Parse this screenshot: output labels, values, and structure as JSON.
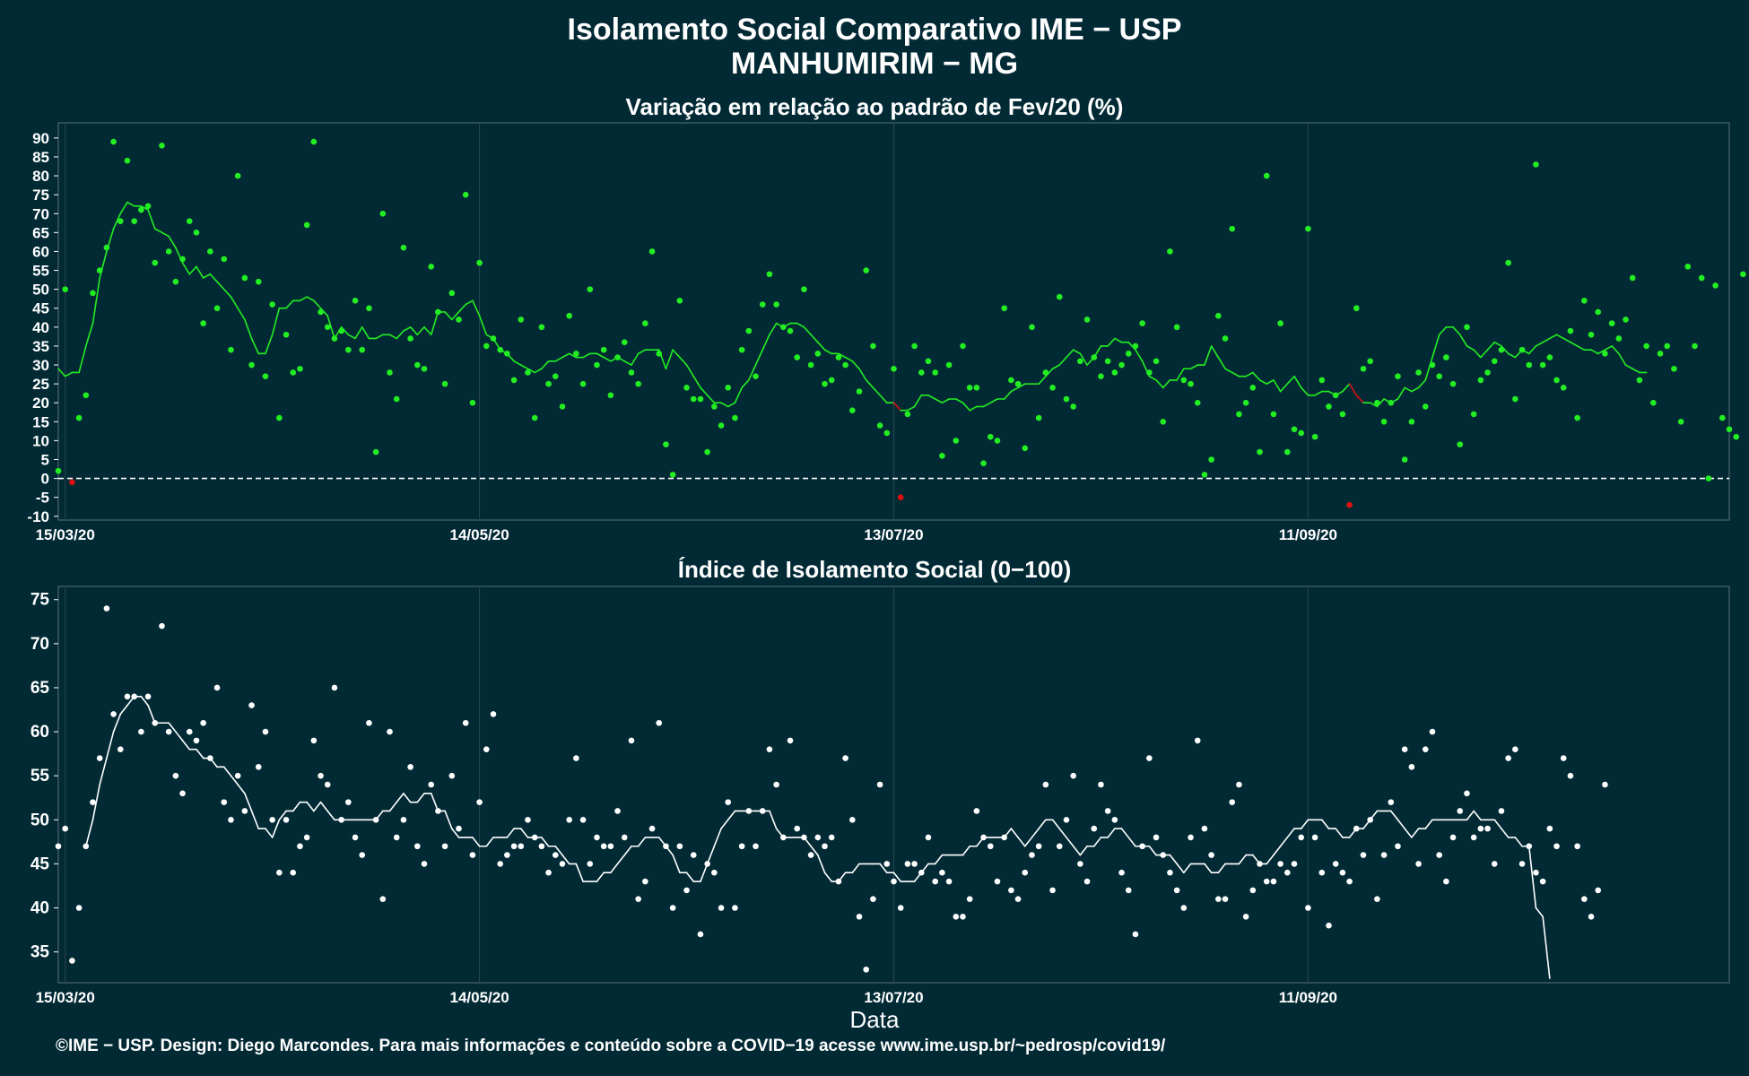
{
  "header": {
    "title_line1": "Isolamento Social Comparativo IME − USP",
    "title_line2": "MANHUMIRIM − MG"
  },
  "footer": {
    "credit": "©IME − USP. Design: Diego Marcondes. Para mais informações e conteúdo sobre a COVID−19 acesse www.ime.usp.br/~pedrosp/covid19/"
  },
  "colors": {
    "background": "#022a35",
    "positive": "#22ee22",
    "negative": "#dd1111",
    "index": "#ffffff",
    "grid": "#2a4650"
  },
  "chart_data": [
    {
      "type": "scatter",
      "title": "Variação em relação ao padrão de Fev/20 (%)",
      "xlabel": "",
      "ylabel": "",
      "x_ticks": [
        "15/03/20",
        "14/05/20",
        "13/07/20",
        "11/09/20"
      ],
      "xlim": [
        "15/03/20",
        "11/11/20"
      ],
      "ylim": [
        -11,
        94
      ],
      "y_ticks": [
        -10,
        -5,
        0,
        5,
        10,
        15,
        20,
        25,
        30,
        35,
        40,
        45,
        50,
        55,
        60,
        65,
        70,
        75,
        80,
        85,
        90
      ],
      "reference_line": 0,
      "series": [
        {
          "values": [
            2,
            50,
            -1,
            16,
            22,
            49,
            55,
            61,
            89,
            68,
            84,
            68,
            71,
            72,
            57,
            88,
            60,
            52,
            58,
            68,
            65,
            41,
            60,
            45,
            58,
            34,
            80,
            53,
            30,
            52,
            27,
            46,
            16,
            38,
            28,
            29,
            67,
            89,
            44,
            40,
            37,
            39,
            34,
            47,
            34,
            45,
            7,
            70,
            28,
            21,
            61,
            37,
            30,
            29,
            56,
            44,
            25,
            49,
            42,
            75,
            20,
            57,
            35,
            37,
            34,
            33,
            26,
            42,
            28,
            16,
            40,
            25,
            27,
            19,
            43,
            33,
            25,
            50,
            30,
            34,
            22,
            32,
            36,
            28,
            25,
            41,
            60,
            33,
            9,
            1,
            47,
            24,
            21,
            21,
            7,
            19,
            14,
            24,
            16,
            34,
            39,
            27,
            46,
            54,
            46,
            40,
            39,
            32,
            50,
            30,
            33,
            25,
            26,
            32,
            30,
            18,
            23,
            55,
            35,
            14,
            12,
            29,
            -5,
            17,
            35,
            28,
            31,
            28,
            6,
            30,
            10,
            35,
            24,
            24,
            4,
            11,
            10,
            45,
            26,
            25,
            8,
            40,
            16,
            28,
            24,
            48,
            21,
            19,
            31,
            42,
            32,
            27,
            31,
            28,
            30,
            33,
            35,
            41,
            28,
            31,
            15,
            60,
            40,
            26,
            25,
            20,
            1,
            5,
            43,
            37,
            66,
            17,
            20,
            24,
            7,
            80,
            17,
            41,
            7,
            13,
            12,
            66,
            11,
            26,
            19,
            22,
            17,
            -7,
            45,
            29,
            31,
            20,
            15,
            20,
            27,
            5,
            15,
            28,
            19,
            30,
            27,
            32,
            25,
            9,
            40,
            17,
            26,
            28,
            31,
            34,
            57,
            21,
            34,
            30,
            83,
            30,
            32,
            26,
            24,
            39,
            16,
            47,
            38,
            44,
            33,
            41,
            37,
            42,
            53,
            26,
            35,
            20,
            33,
            35,
            29,
            15,
            56,
            35,
            53,
            0,
            51,
            16,
            13,
            11,
            54
          ],
          "rolling_mean": [
            29,
            27,
            28,
            28,
            35,
            41,
            53,
            60,
            66,
            70,
            73,
            72,
            72,
            71,
            66,
            65,
            64,
            61,
            57,
            54,
            56,
            53,
            54,
            52,
            50,
            48,
            45,
            42,
            37,
            33,
            33,
            38,
            45,
            45,
            47,
            47,
            48,
            47,
            45,
            43,
            37,
            40,
            38,
            37,
            40,
            37,
            37,
            38,
            38,
            37,
            39,
            40,
            38,
            40,
            38,
            44,
            44,
            42,
            44,
            46,
            47,
            43,
            38,
            37,
            34,
            33,
            31,
            30,
            29,
            28,
            29,
            31,
            31,
            32,
            33,
            32,
            32,
            33,
            33,
            32,
            31,
            32,
            31,
            30,
            33,
            34,
            34,
            34,
            29,
            34,
            32,
            30,
            27,
            24,
            22,
            20,
            20,
            19,
            20,
            24,
            26,
            30,
            34,
            38,
            41,
            40,
            41,
            41,
            40,
            38,
            36,
            34,
            33,
            33,
            32,
            31,
            29,
            26,
            24,
            22,
            20,
            20,
            18,
            18,
            19,
            22,
            22,
            21,
            20,
            21,
            21,
            20,
            18,
            19,
            19,
            20,
            21,
            21,
            23,
            24,
            25,
            25,
            25,
            27,
            29,
            30,
            32,
            34,
            33,
            30,
            32,
            35,
            35,
            37,
            36,
            36,
            34,
            31,
            27,
            26,
            24,
            26,
            26,
            29,
            29,
            30,
            30,
            35,
            32,
            29,
            28,
            27,
            27,
            28,
            26,
            25,
            26,
            23,
            25,
            27,
            24,
            22,
            22,
            23,
            23,
            22,
            23,
            25,
            22,
            20,
            20,
            19,
            21,
            20,
            21,
            24,
            23,
            24,
            26,
            32,
            38,
            40,
            40,
            38,
            35,
            34,
            32,
            34,
            36,
            35,
            33,
            32,
            34,
            33,
            35,
            36,
            37,
            38,
            37,
            36,
            35,
            34,
            34,
            33,
            34,
            35,
            33,
            30,
            29,
            28,
            28
          ]
        }
      ]
    },
    {
      "type": "scatter",
      "title": "Índice de Isolamento Social (0−100)",
      "xlabel": "Data",
      "ylabel": "",
      "x_ticks": [
        "15/03/20",
        "14/05/20",
        "13/07/20",
        "11/09/20"
      ],
      "xlim": [
        "15/03/20",
        "11/11/20"
      ],
      "ylim": [
        31.5,
        76.5
      ],
      "y_ticks": [
        35,
        40,
        45,
        50,
        55,
        60,
        65,
        70,
        75
      ],
      "series": [
        {
          "values": [
            47,
            49,
            34,
            40,
            47,
            52,
            57,
            74,
            62,
            58,
            64,
            64,
            60,
            64,
            61,
            72,
            60,
            55,
            53,
            60,
            59,
            61,
            57,
            65,
            52,
            50,
            55,
            51,
            63,
            56,
            60,
            50,
            44,
            50,
            44,
            47,
            48,
            59,
            55,
            54,
            65,
            50,
            52,
            48,
            46,
            61,
            50,
            41,
            60,
            48,
            50,
            56,
            47,
            45,
            54,
            51,
            47,
            55,
            49,
            61,
            46,
            52,
            58,
            62,
            45,
            46,
            47,
            47,
            50,
            48,
            47,
            44,
            46,
            45,
            50,
            57,
            50,
            45,
            48,
            47,
            47,
            51,
            48,
            59,
            41,
            43,
            49,
            61,
            47,
            40,
            47,
            42,
            46,
            37,
            45,
            44,
            40,
            52,
            40,
            47,
            51,
            47,
            51,
            58,
            54,
            48,
            59,
            49,
            48,
            46,
            48,
            47,
            48,
            43,
            57,
            50,
            39,
            33,
            41,
            54,
            45,
            43,
            40,
            45,
            45,
            44,
            48,
            43,
            44,
            43,
            39,
            39,
            41,
            51,
            48,
            47,
            43,
            48,
            42,
            41,
            44,
            46,
            47,
            54,
            42,
            47,
            50,
            55,
            45,
            43,
            49,
            54,
            51,
            50,
            44,
            42,
            37,
            47,
            57,
            48,
            46,
            44,
            42,
            40,
            48,
            59,
            49,
            46,
            41,
            41,
            52,
            54,
            39,
            42,
            45,
            43,
            43,
            45,
            44,
            45,
            48,
            40,
            48,
            44,
            38,
            45,
            44,
            43,
            49,
            46,
            50,
            41,
            46,
            52,
            47,
            58,
            56,
            45,
            58,
            60,
            46,
            43,
            48,
            51,
            53,
            48,
            49,
            49,
            45,
            51,
            57,
            58,
            45,
            47,
            44,
            43,
            49,
            47,
            57,
            55,
            47,
            41,
            39,
            42,
            54
          ],
          "rolling_mean": [
            null,
            null,
            null,
            null,
            47,
            50,
            54,
            57,
            60,
            62,
            63,
            64,
            64,
            63,
            61,
            61,
            61,
            60,
            59,
            58,
            58,
            57,
            57,
            56,
            56,
            55,
            54,
            53,
            51,
            49,
            49,
            48,
            50,
            51,
            51,
            52,
            52,
            51,
            52,
            51,
            50,
            50,
            50,
            50,
            50,
            50,
            50,
            51,
            51,
            52,
            53,
            52,
            52,
            53,
            53,
            51,
            51,
            49,
            48,
            48,
            48,
            47,
            47,
            48,
            48,
            48,
            49,
            49,
            48,
            48,
            48,
            47,
            47,
            46,
            45,
            45,
            43,
            43,
            43,
            44,
            44,
            45,
            46,
            47,
            47,
            48,
            48,
            48,
            47,
            46,
            44,
            44,
            43,
            43,
            45,
            47,
            49,
            50,
            51,
            51,
            51,
            51,
            51,
            51,
            49,
            48,
            48,
            48,
            48,
            47,
            46,
            44,
            43,
            43,
            44,
            44,
            45,
            45,
            45,
            45,
            44,
            44,
            43,
            43,
            43,
            44,
            45,
            45,
            46,
            46,
            46,
            46,
            47,
            47,
            48,
            48,
            48,
            48,
            49,
            48,
            47,
            48,
            49,
            50,
            50,
            49,
            48,
            47,
            46,
            47,
            47,
            48,
            48,
            49,
            49,
            48,
            47,
            47,
            47,
            46,
            46,
            46,
            45,
            44,
            45,
            45,
            45,
            44,
            44,
            45,
            45,
            45,
            46,
            46,
            45,
            45,
            46,
            47,
            48,
            49,
            49,
            50,
            50,
            50,
            49,
            49,
            48,
            48,
            49,
            49,
            50,
            51,
            51,
            51,
            50,
            49,
            48,
            49,
            49,
            50,
            50,
            50,
            50,
            50,
            50,
            51,
            50,
            50,
            50,
            49,
            48,
            48,
            47,
            47,
            40,
            39,
            32
          ]
        }
      ]
    }
  ]
}
